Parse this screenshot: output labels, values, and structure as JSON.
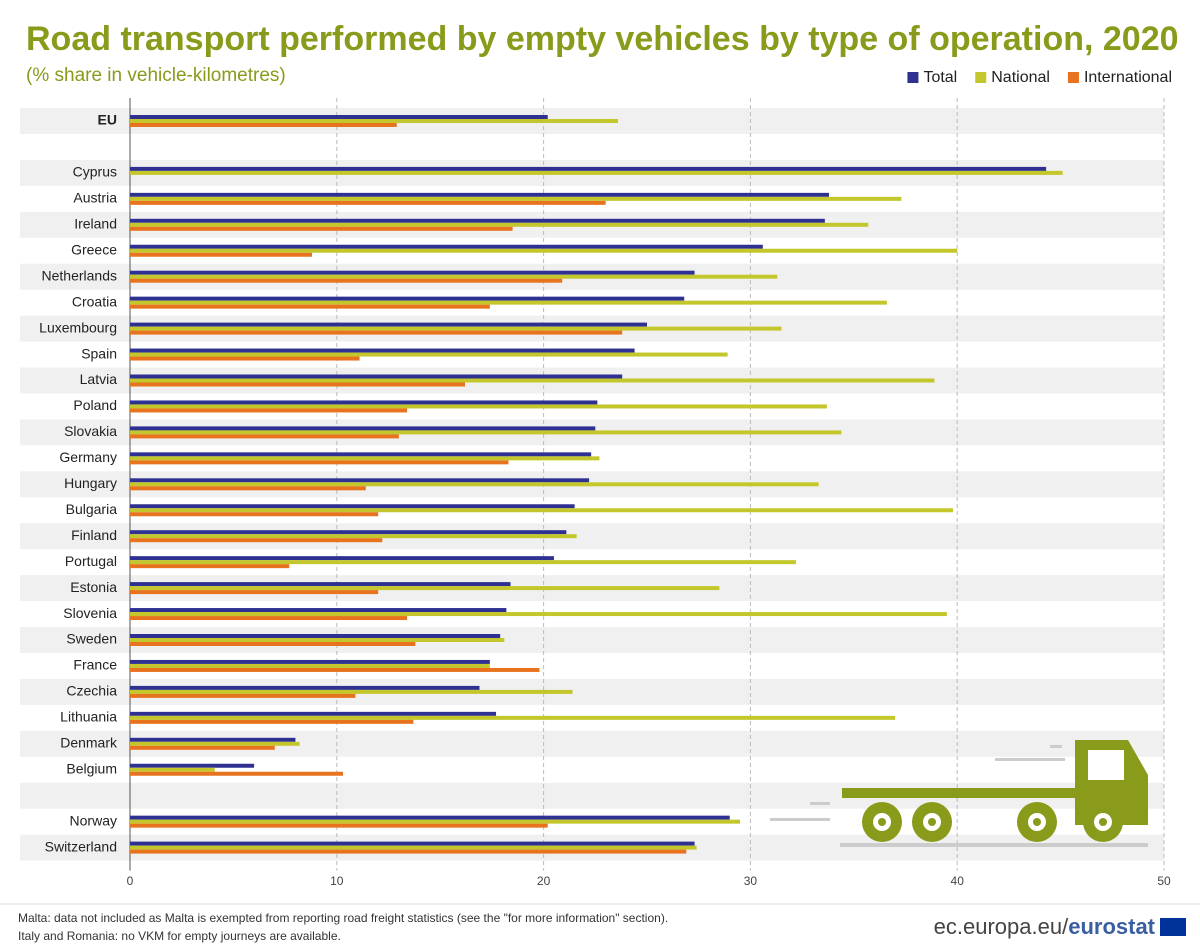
{
  "chart_data": {
    "type": "hbar",
    "title": "Road transport performed by empty vehicles by type of operation, 2020",
    "subtitle": "(% share in vehicle-kilometres)",
    "categories": [
      "EU",
      null,
      "Cyprus",
      "Austria",
      "Ireland",
      "Greece",
      "Netherlands",
      "Croatia",
      "Luxembourg",
      "Spain",
      "Latvia",
      "Poland",
      "Slovakia",
      "Germany",
      "Hungary",
      "Bulgaria",
      "Finland",
      "Portugal",
      "Estonia",
      "Slovenia",
      "Sweden",
      "France",
      "Czechia",
      "Lithuania",
      "Denmark",
      "Belgium",
      null,
      "Norway",
      "Switzerland"
    ],
    "series": [
      {
        "name": "Total",
        "color": "#2e3192",
        "values": [
          20.2,
          null,
          44.3,
          33.8,
          33.6,
          30.6,
          27.3,
          26.8,
          25.0,
          24.4,
          23.8,
          22.6,
          22.5,
          22.3,
          22.2,
          21.5,
          21.1,
          20.5,
          18.4,
          18.2,
          17.9,
          17.4,
          16.9,
          17.7,
          8.0,
          6.0,
          null,
          29.0,
          27.3
        ]
      },
      {
        "name": "National",
        "color": "#c4c72b",
        "values": [
          23.6,
          null,
          45.1,
          37.3,
          35.7,
          40.0,
          31.3,
          36.6,
          31.5,
          28.9,
          38.9,
          33.7,
          34.4,
          22.7,
          33.3,
          39.8,
          21.6,
          32.2,
          28.5,
          39.5,
          18.1,
          17.4,
          21.4,
          37.0,
          8.2,
          4.1,
          null,
          29.5,
          27.4
        ]
      },
      {
        "name": "International",
        "color": "#e8731e",
        "values": [
          12.9,
          null,
          null,
          23.0,
          18.5,
          8.8,
          20.9,
          17.4,
          23.8,
          11.1,
          16.2,
          13.4,
          13.0,
          18.3,
          11.4,
          12.0,
          12.2,
          7.7,
          12.0,
          13.4,
          13.8,
          19.8,
          10.9,
          13.7,
          7.0,
          10.3,
          null,
          20.2,
          26.9
        ]
      }
    ],
    "xlim": [
      0,
      50
    ],
    "xticks": [
      0,
      10,
      20,
      30,
      40,
      50
    ],
    "grid": true,
    "legend": "top-right",
    "footnotes": [
      "Malta: data not included as Malta is exempted from reporting road freight statistics (see the \"for more information\" section).",
      "Italy and Romania: no VKM  for empty journeys are available."
    ],
    "source": [
      "ec.europa.eu/",
      "eurostat"
    ]
  }
}
